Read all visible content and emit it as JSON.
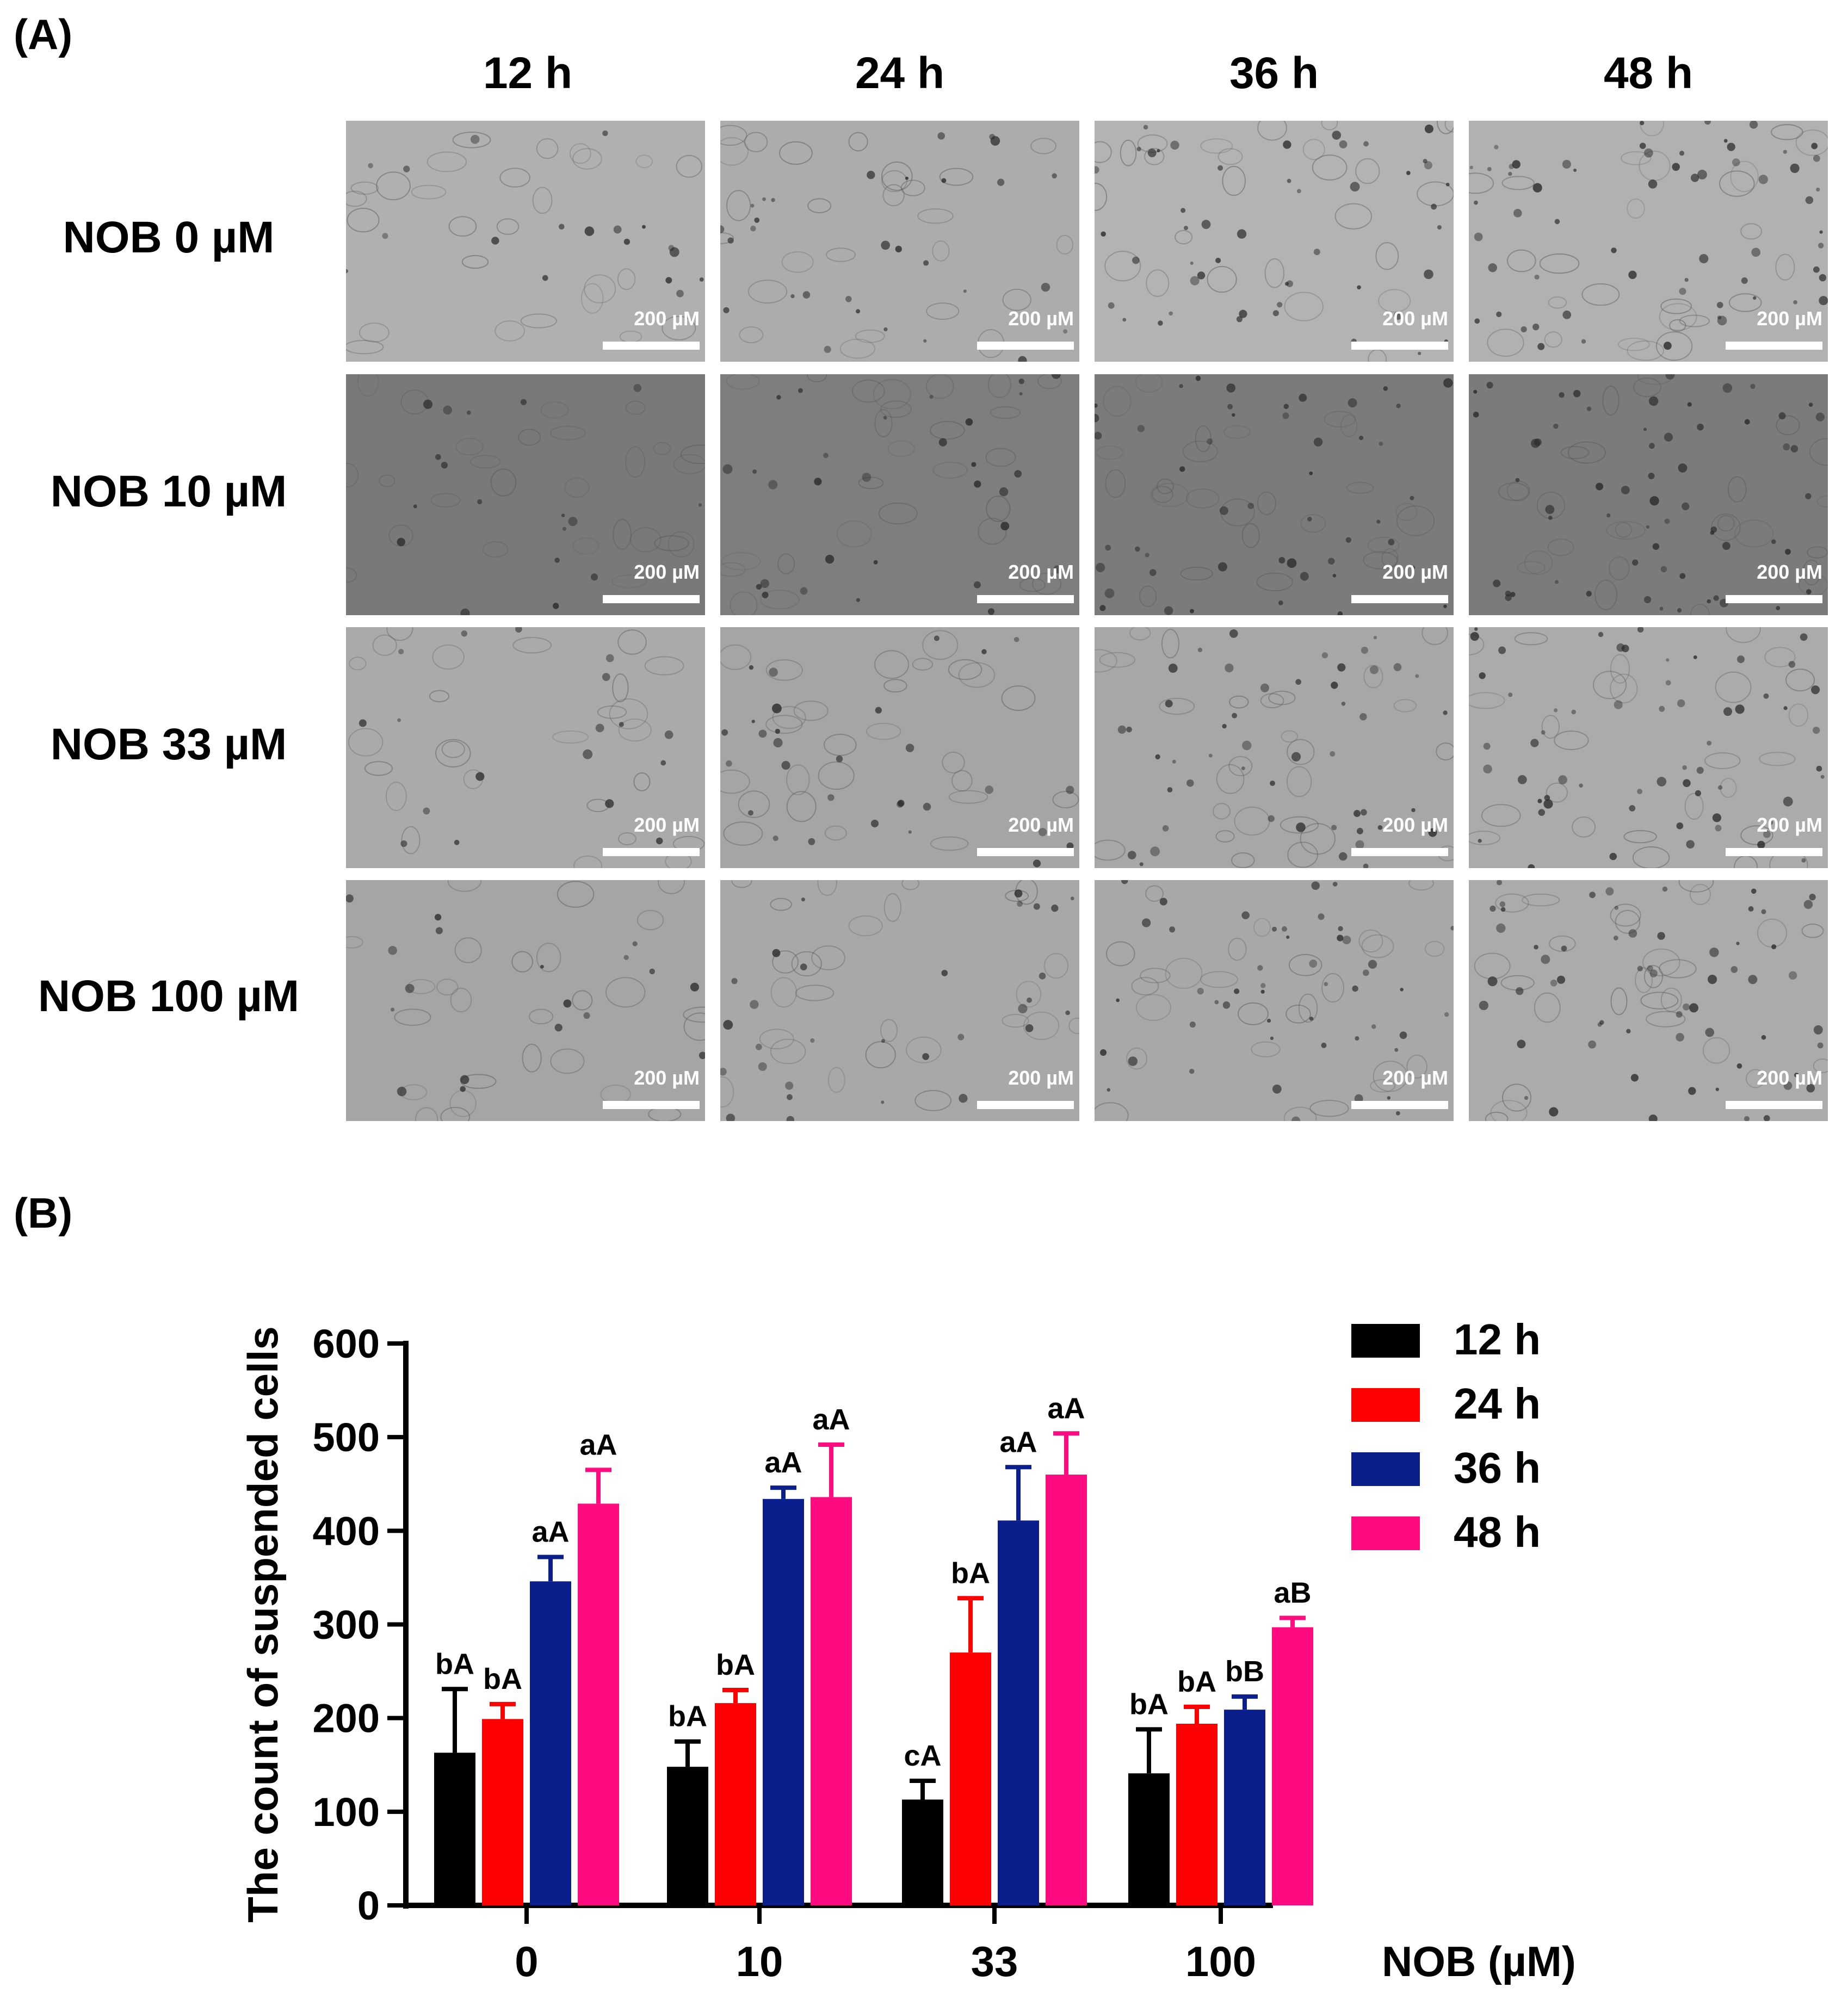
{
  "panel_a": {
    "label": "(A)",
    "columns": [
      "12 h",
      "24 h",
      "36 h",
      "48 h"
    ],
    "rows": [
      "NOB 0 µM",
      "NOB 10 µM",
      "NOB 33 µM",
      "NOB 100 µM"
    ],
    "scale_bar_label": "200 µM"
  },
  "panel_b": {
    "label": "(B)"
  },
  "chart_data": {
    "type": "bar",
    "title": "",
    "xlabel": "NOB (µM)",
    "ylabel": "The count of suspended cells",
    "ylim": [
      0,
      600
    ],
    "yticks": [
      0,
      100,
      200,
      300,
      400,
      500,
      600
    ],
    "categories": [
      "0",
      "10",
      "33",
      "100"
    ],
    "legend_position": "top-right",
    "series": [
      {
        "name": "12 h",
        "color": "#000000",
        "values": [
          163,
          148,
          113,
          141
        ],
        "errors": [
          68,
          27,
          20,
          47
        ],
        "labels": [
          "bA",
          "bA",
          "cA",
          "bA"
        ]
      },
      {
        "name": "24 h",
        "color": "#ff0000",
        "values": [
          199,
          216,
          270,
          194
        ],
        "errors": [
          16,
          14,
          58,
          18
        ],
        "labels": [
          "bA",
          "bA",
          "bA",
          "bA"
        ]
      },
      {
        "name": "36 h",
        "color": "#0a1e8c",
        "values": [
          346,
          434,
          411,
          209
        ],
        "errors": [
          26,
          12,
          57,
          14
        ],
        "labels": [
          "aA",
          "aA",
          "aA",
          "bB"
        ]
      },
      {
        "name": "48 h",
        "color": "#ff0a7f",
        "values": [
          429,
          436,
          460,
          297
        ],
        "errors": [
          36,
          56,
          44,
          10
        ],
        "labels": [
          "aA",
          "aA",
          "aA",
          "aB"
        ]
      }
    ]
  }
}
